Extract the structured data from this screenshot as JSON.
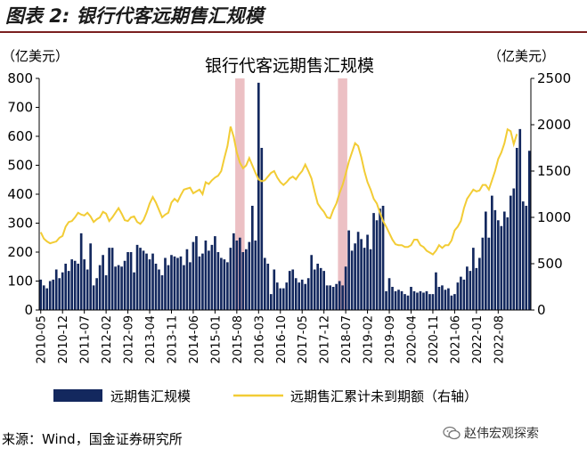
{
  "figure": {
    "label": "图表 2:",
    "heading": "银行代客远期售汇规模"
  },
  "source_note": "来源：Wind，国金证券研究所",
  "watermark": "赵伟宏观探索",
  "colors": {
    "bar": "#13285e",
    "line": "#f2cc35",
    "shade": "#ecc0c4",
    "axis": "#000000"
  },
  "chart_data": {
    "type": "bar",
    "title": "银行代客远期售汇规模",
    "y_left": {
      "label": "（亿美元）",
      "lim": [
        0,
        800
      ],
      "ticks": [
        0,
        100,
        200,
        300,
        400,
        500,
        600,
        700,
        800
      ]
    },
    "y_right": {
      "label": "（亿美元）",
      "lim": [
        0,
        2500
      ],
      "ticks": [
        0,
        500,
        1000,
        1500,
        2000,
        2500
      ]
    },
    "x_tick_labels": [
      "2010-05",
      "2010-12",
      "2011-07",
      "2012-02",
      "2012-09",
      "2013-04",
      "2013-11",
      "2014-06",
      "2015-01",
      "2015-08",
      "2016-03",
      "2016-10",
      "2017-05",
      "2017-12",
      "2018-07",
      "2019-02",
      "2019-09",
      "2020-04",
      "2020-11",
      "2021-06",
      "2022-01",
      "2022-08"
    ],
    "shaded_periods": [
      [
        "2015-08",
        "2015-10"
      ],
      [
        "2018-05",
        "2018-07"
      ]
    ],
    "grid": false,
    "legend_position": "bottom",
    "series": [
      {
        "name": "远期售汇规模",
        "axis": "left",
        "type": "bar",
        "values": [
          105,
          85,
          75,
          100,
          105,
          140,
          110,
          130,
          160,
          135,
          175,
          170,
          160,
          265,
          175,
          140,
          230,
          85,
          110,
          155,
          190,
          120,
          215,
          215,
          150,
          155,
          150,
          170,
          200,
          200,
          130,
          225,
          215,
          205,
          195,
          175,
          195,
          160,
          140,
          120,
          180,
          155,
          190,
          185,
          180,
          185,
          155,
          210,
          165,
          235,
          255,
          185,
          195,
          240,
          205,
          225,
          255,
          200,
          180,
          175,
          165,
          215,
          265,
          240,
          250,
          200,
          210,
          235,
          360,
          240,
          785,
          560,
          180,
          160,
          55,
          140,
          95,
          75,
          75,
          95,
          135,
          140,
          110,
          95,
          105,
          90,
          110,
          190,
          140,
          160,
          145,
          135,
          85,
          85,
          80,
          90,
          100,
          85,
          150,
          275,
          205,
          230,
          270,
          245,
          215,
          260,
          210,
          335,
          310,
          350,
          360,
          65,
          110,
          80,
          65,
          70,
          65,
          55,
          50,
          80,
          65,
          60,
          65,
          60,
          65,
          55,
          55,
          130,
          80,
          85,
          70,
          75,
          50,
          55,
          95,
          115,
          105,
          150,
          135,
          215,
          145,
          180,
          250,
          340,
          250,
          395,
          345,
          310,
          290,
          340,
          320,
          395,
          420,
          560,
          625,
          375,
          360,
          550
        ]
      },
      {
        "name": "远期售汇累计未到期额（右轴）",
        "axis": "right",
        "type": "line",
        "values": [
          840,
          770,
          740,
          720,
          730,
          740,
          780,
          800,
          900,
          950,
          960,
          1000,
          1050,
          1030,
          1020,
          1050,
          1010,
          950,
          980,
          1000,
          1060,
          1040,
          960,
          1000,
          1050,
          1100,
          1040,
          970,
          960,
          1000,
          1010,
          950,
          930,
          970,
          1050,
          1150,
          1220,
          1160,
          1080,
          1000,
          1030,
          1050,
          1160,
          1200,
          1170,
          1240,
          1300,
          1310,
          1320,
          1260,
          1280,
          1300,
          1250,
          1380,
          1360,
          1400,
          1430,
          1450,
          1500,
          1640,
          1770,
          1980,
          1870,
          1700,
          1590,
          1530,
          1560,
          1640,
          1560,
          1480,
          1410,
          1390,
          1400,
          1440,
          1480,
          1500,
          1430,
          1380,
          1350,
          1380,
          1420,
          1440,
          1410,
          1460,
          1500,
          1570,
          1500,
          1420,
          1280,
          1150,
          1100,
          1060,
          1000,
          990,
          1080,
          1150,
          1260,
          1350,
          1470,
          1600,
          1700,
          1800,
          1770,
          1650,
          1500,
          1380,
          1300,
          1200,
          1150,
          1050,
          960,
          900,
          830,
          760,
          710,
          700,
          700,
          680,
          680,
          700,
          760,
          760,
          700,
          680,
          640,
          620,
          600,
          640,
          700,
          670,
          700,
          700,
          750,
          860,
          900,
          960,
          1100,
          1200,
          1250,
          1300,
          1280,
          1290,
          1350,
          1350,
          1300,
          1400,
          1500,
          1630,
          1700,
          1800,
          1950,
          1930,
          1790,
          1900
        ]
      }
    ]
  }
}
